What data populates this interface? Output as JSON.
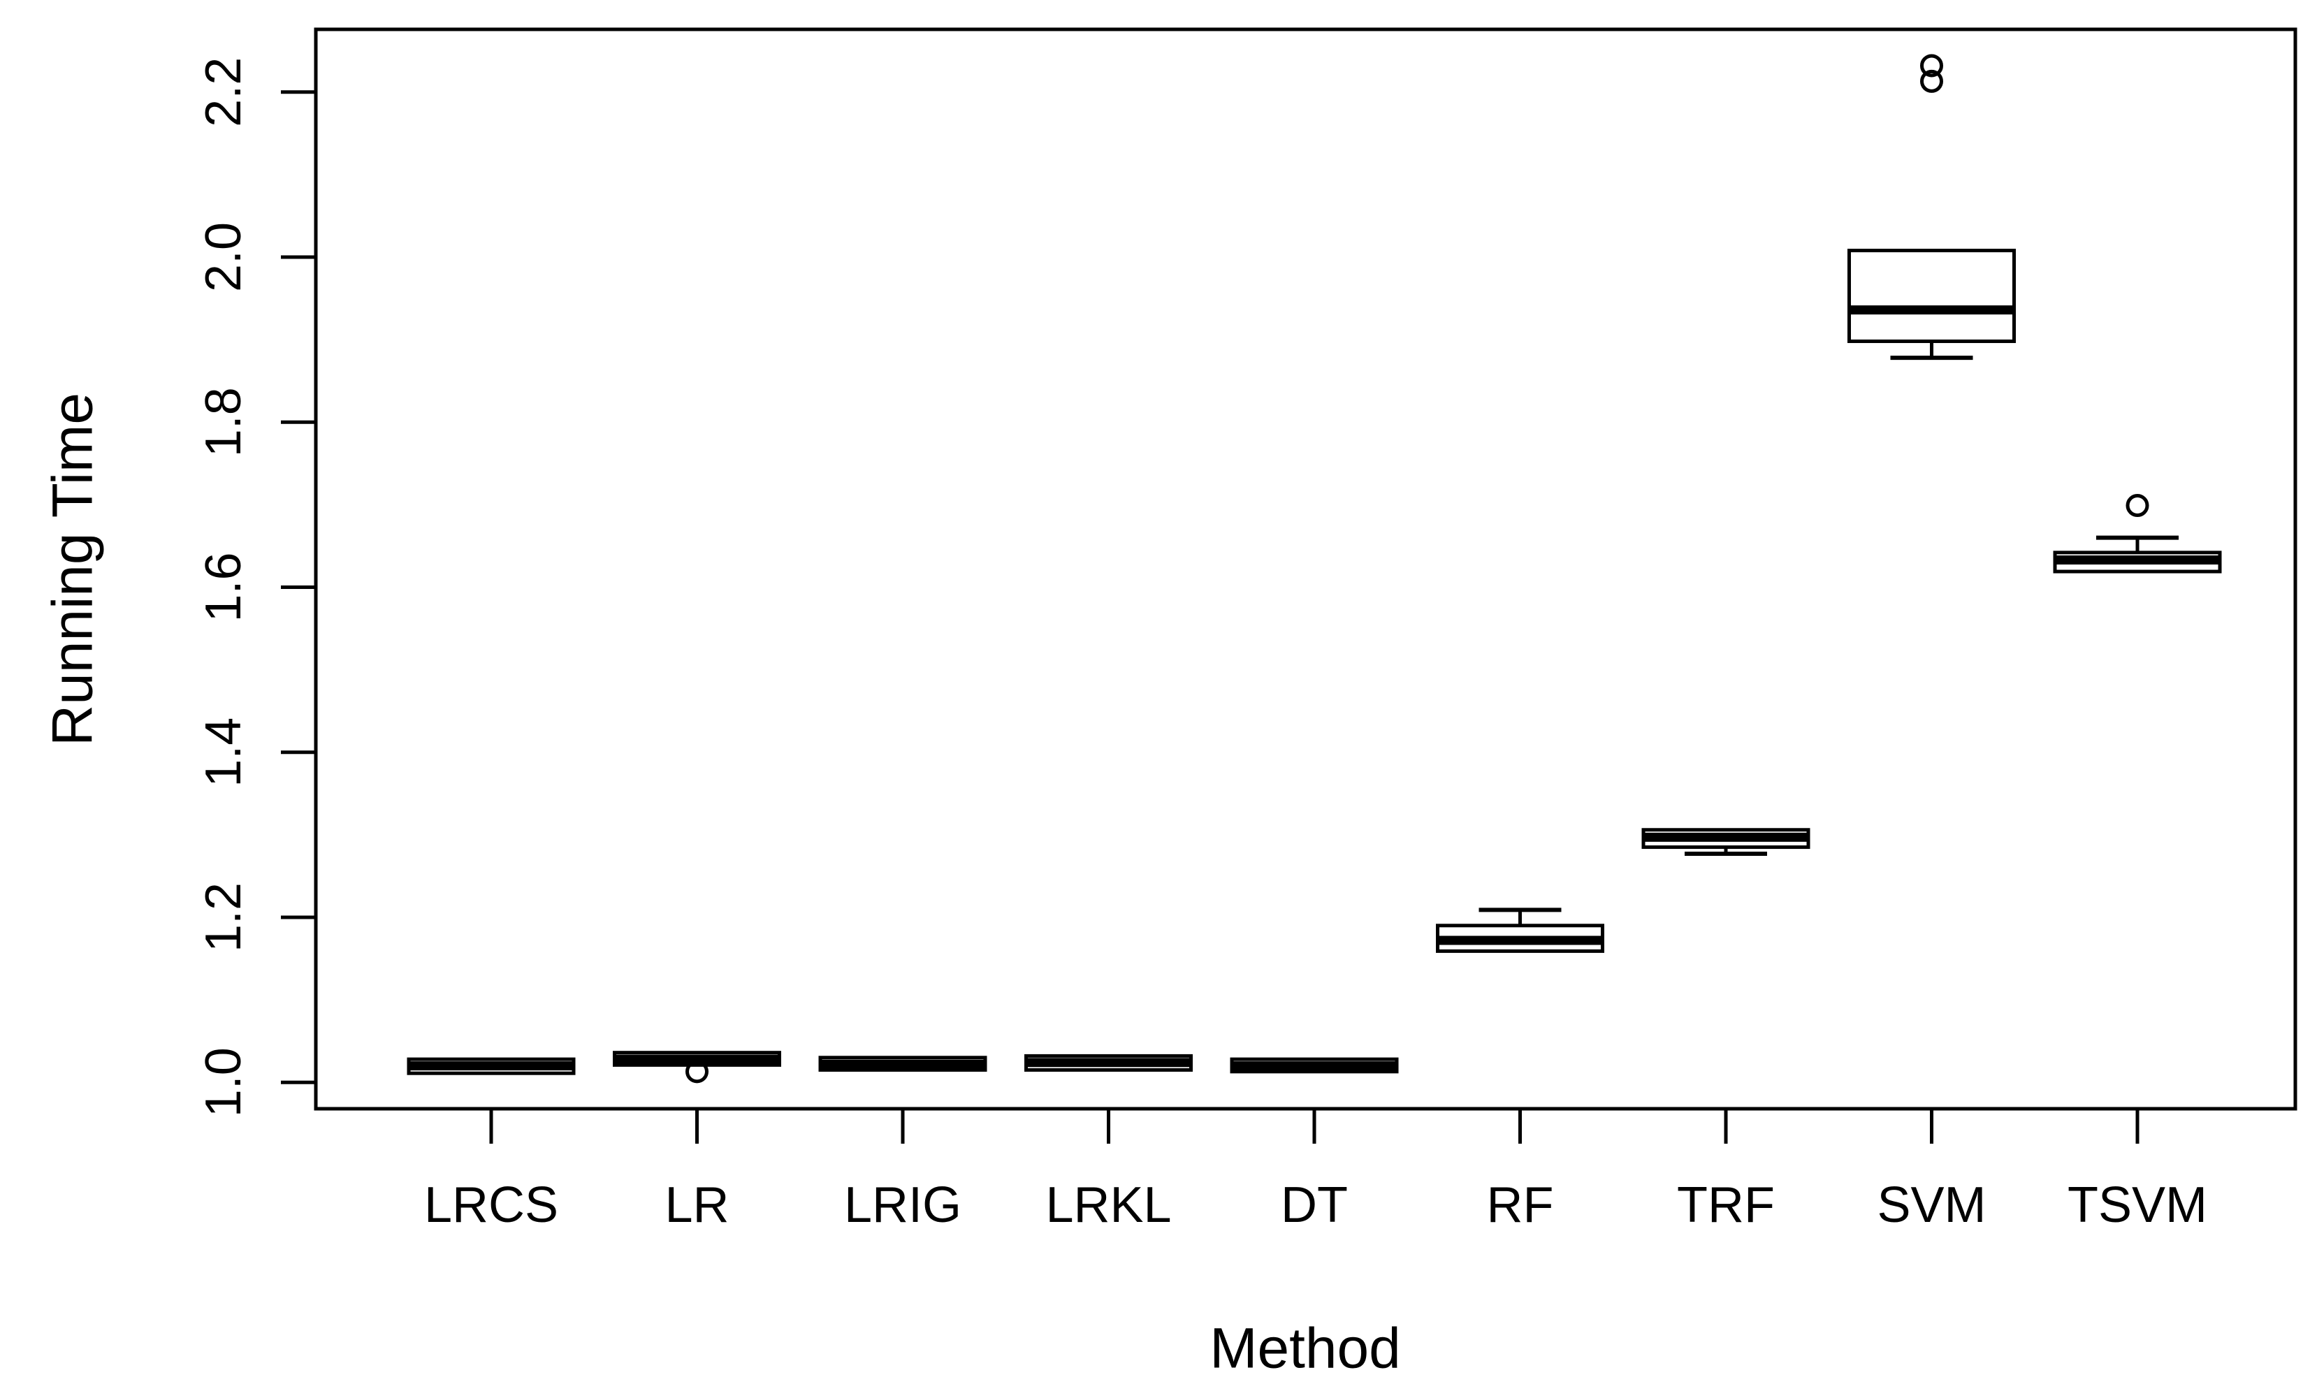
{
  "figure": {
    "background": "#ffffff",
    "ink_color": "#000000"
  },
  "chart_data": {
    "type": "boxplot",
    "title": "",
    "xlabel": "Method",
    "ylabel": "Running Time",
    "categories": [
      "LRCS",
      "LR",
      "LRIG",
      "LRKL",
      "DT",
      "RF",
      "TRF",
      "SVM",
      "TSVM"
    ],
    "y_ticks": [
      1.0,
      1.2,
      1.4,
      1.6,
      1.8,
      2.0,
      2.2
    ],
    "y_tick_labels": [
      "1.0",
      "1.2",
      "1.4",
      "1.6",
      "1.8",
      "2.0",
      "2.2"
    ],
    "ylim": [
      0.968,
      2.276
    ],
    "grid": false,
    "legend": "none",
    "orientation": "vertical",
    "series": [
      {
        "name": "LRCS",
        "q1": 1.011,
        "median": 1.02,
        "q3": 1.028,
        "whisker_low": null,
        "whisker_high": null,
        "outliers": []
      },
      {
        "name": "LR",
        "q1": 1.021,
        "median": 1.028,
        "q3": 1.036,
        "whisker_low": null,
        "whisker_high": null,
        "outliers": [
          1.013
        ]
      },
      {
        "name": "LRIG",
        "q1": 1.015,
        "median": 1.022,
        "q3": 1.03,
        "whisker_low": null,
        "whisker_high": null,
        "outliers": []
      },
      {
        "name": "LRKL",
        "q1": 1.015,
        "median": 1.024,
        "q3": 1.032,
        "whisker_low": null,
        "whisker_high": null,
        "outliers": []
      },
      {
        "name": "DT",
        "q1": 1.013,
        "median": 1.02,
        "q3": 1.028,
        "whisker_low": null,
        "whisker_high": null,
        "outliers": []
      },
      {
        "name": "RF",
        "q1": 1.159,
        "median": 1.172,
        "q3": 1.19,
        "whisker_low": null,
        "whisker_high": 1.209,
        "outliers": []
      },
      {
        "name": "TRF",
        "q1": 1.285,
        "median": 1.297,
        "q3": 1.306,
        "whisker_low": 1.277,
        "whisker_high": null,
        "outliers": []
      },
      {
        "name": "SVM",
        "q1": 1.898,
        "median": 1.936,
        "q3": 2.008,
        "whisker_low": 1.878,
        "whisker_high": null,
        "outliers": [
          2.213,
          2.232
        ]
      },
      {
        "name": "TSVM",
        "q1": 1.619,
        "median": 1.633,
        "q3": 1.642,
        "whisker_low": null,
        "whisker_high": 1.66,
        "outliers": [
          1.699
        ]
      }
    ]
  }
}
